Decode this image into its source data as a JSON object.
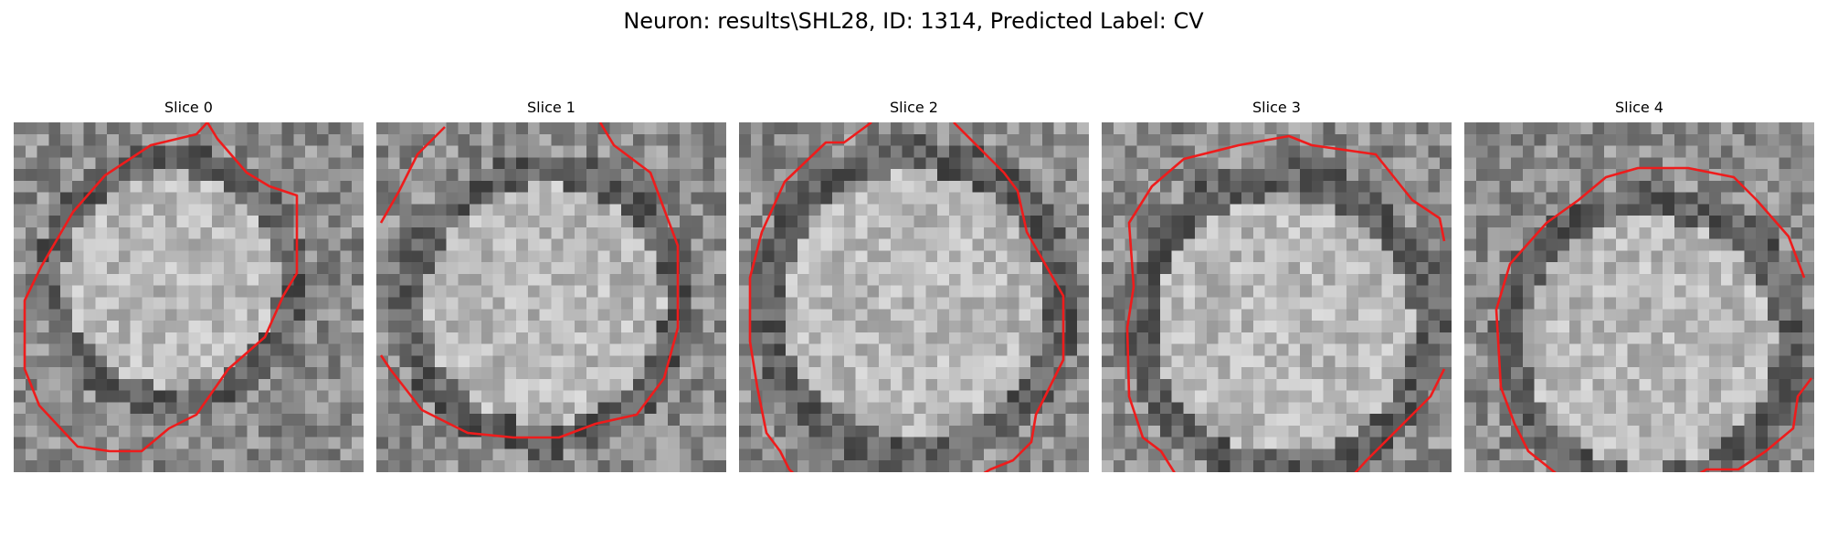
{
  "title": "Neuron: results\\SHL28, ID: 1314, Predicted Label: CV",
  "contour_color": "#ee1c1c",
  "panels": [
    {
      "label": "Slice 0"
    },
    {
      "label": "Slice 1"
    },
    {
      "label": "Slice 2"
    },
    {
      "label": "Slice 3"
    },
    {
      "label": "Slice 4"
    }
  ]
}
